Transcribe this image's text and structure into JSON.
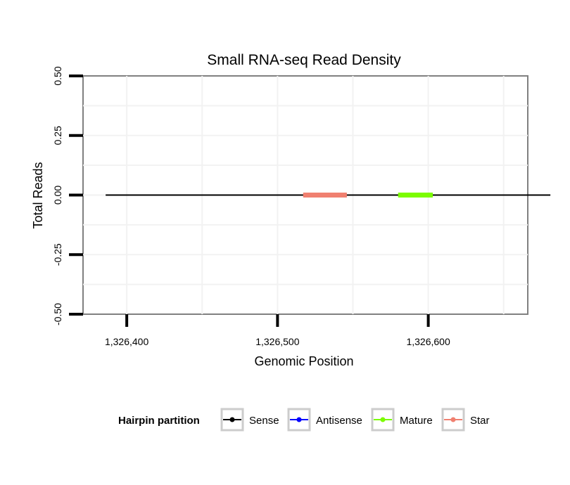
{
  "chart_data": {
    "type": "line",
    "title": "Small RNA-seq Read Density",
    "xlabel": "Genomic Position",
    "ylabel": "Total Reads",
    "xlim": [
      1326371,
      1326666
    ],
    "ylim": [
      -0.5,
      0.5
    ],
    "x_ticks": [
      1326400,
      1326500,
      1326600
    ],
    "x_tick_labels": [
      "1,326,400",
      "1,326,500",
      "1,326,600"
    ],
    "y_ticks": [
      -0.5,
      -0.25,
      0,
      0.25,
      0.5
    ],
    "y_tick_labels": [
      "-0.50",
      "-0.25",
      "0.00",
      "0.25",
      "0.50"
    ],
    "grid": true,
    "series": [
      {
        "name": "Sense",
        "color": "#000000",
        "x": [
          1326386,
          1326681
        ],
        "y": [
          0,
          0
        ]
      },
      {
        "name": "Antisense",
        "color": "#0000ff",
        "x": [
          1326386,
          1326681
        ],
        "y": [
          0,
          0
        ]
      },
      {
        "name": "Mature",
        "color": "#7cfc00",
        "x": [
          1326580,
          1326603
        ],
        "y": [
          0,
          0
        ]
      },
      {
        "name": "Star",
        "color": "#f08070",
        "x": [
          1326517,
          1326546
        ],
        "y": [
          0,
          0
        ]
      }
    ],
    "legend": {
      "title": "Hairpin partition",
      "position": "bottom",
      "items": [
        "Sense",
        "Antisense",
        "Mature",
        "Star"
      ]
    }
  }
}
